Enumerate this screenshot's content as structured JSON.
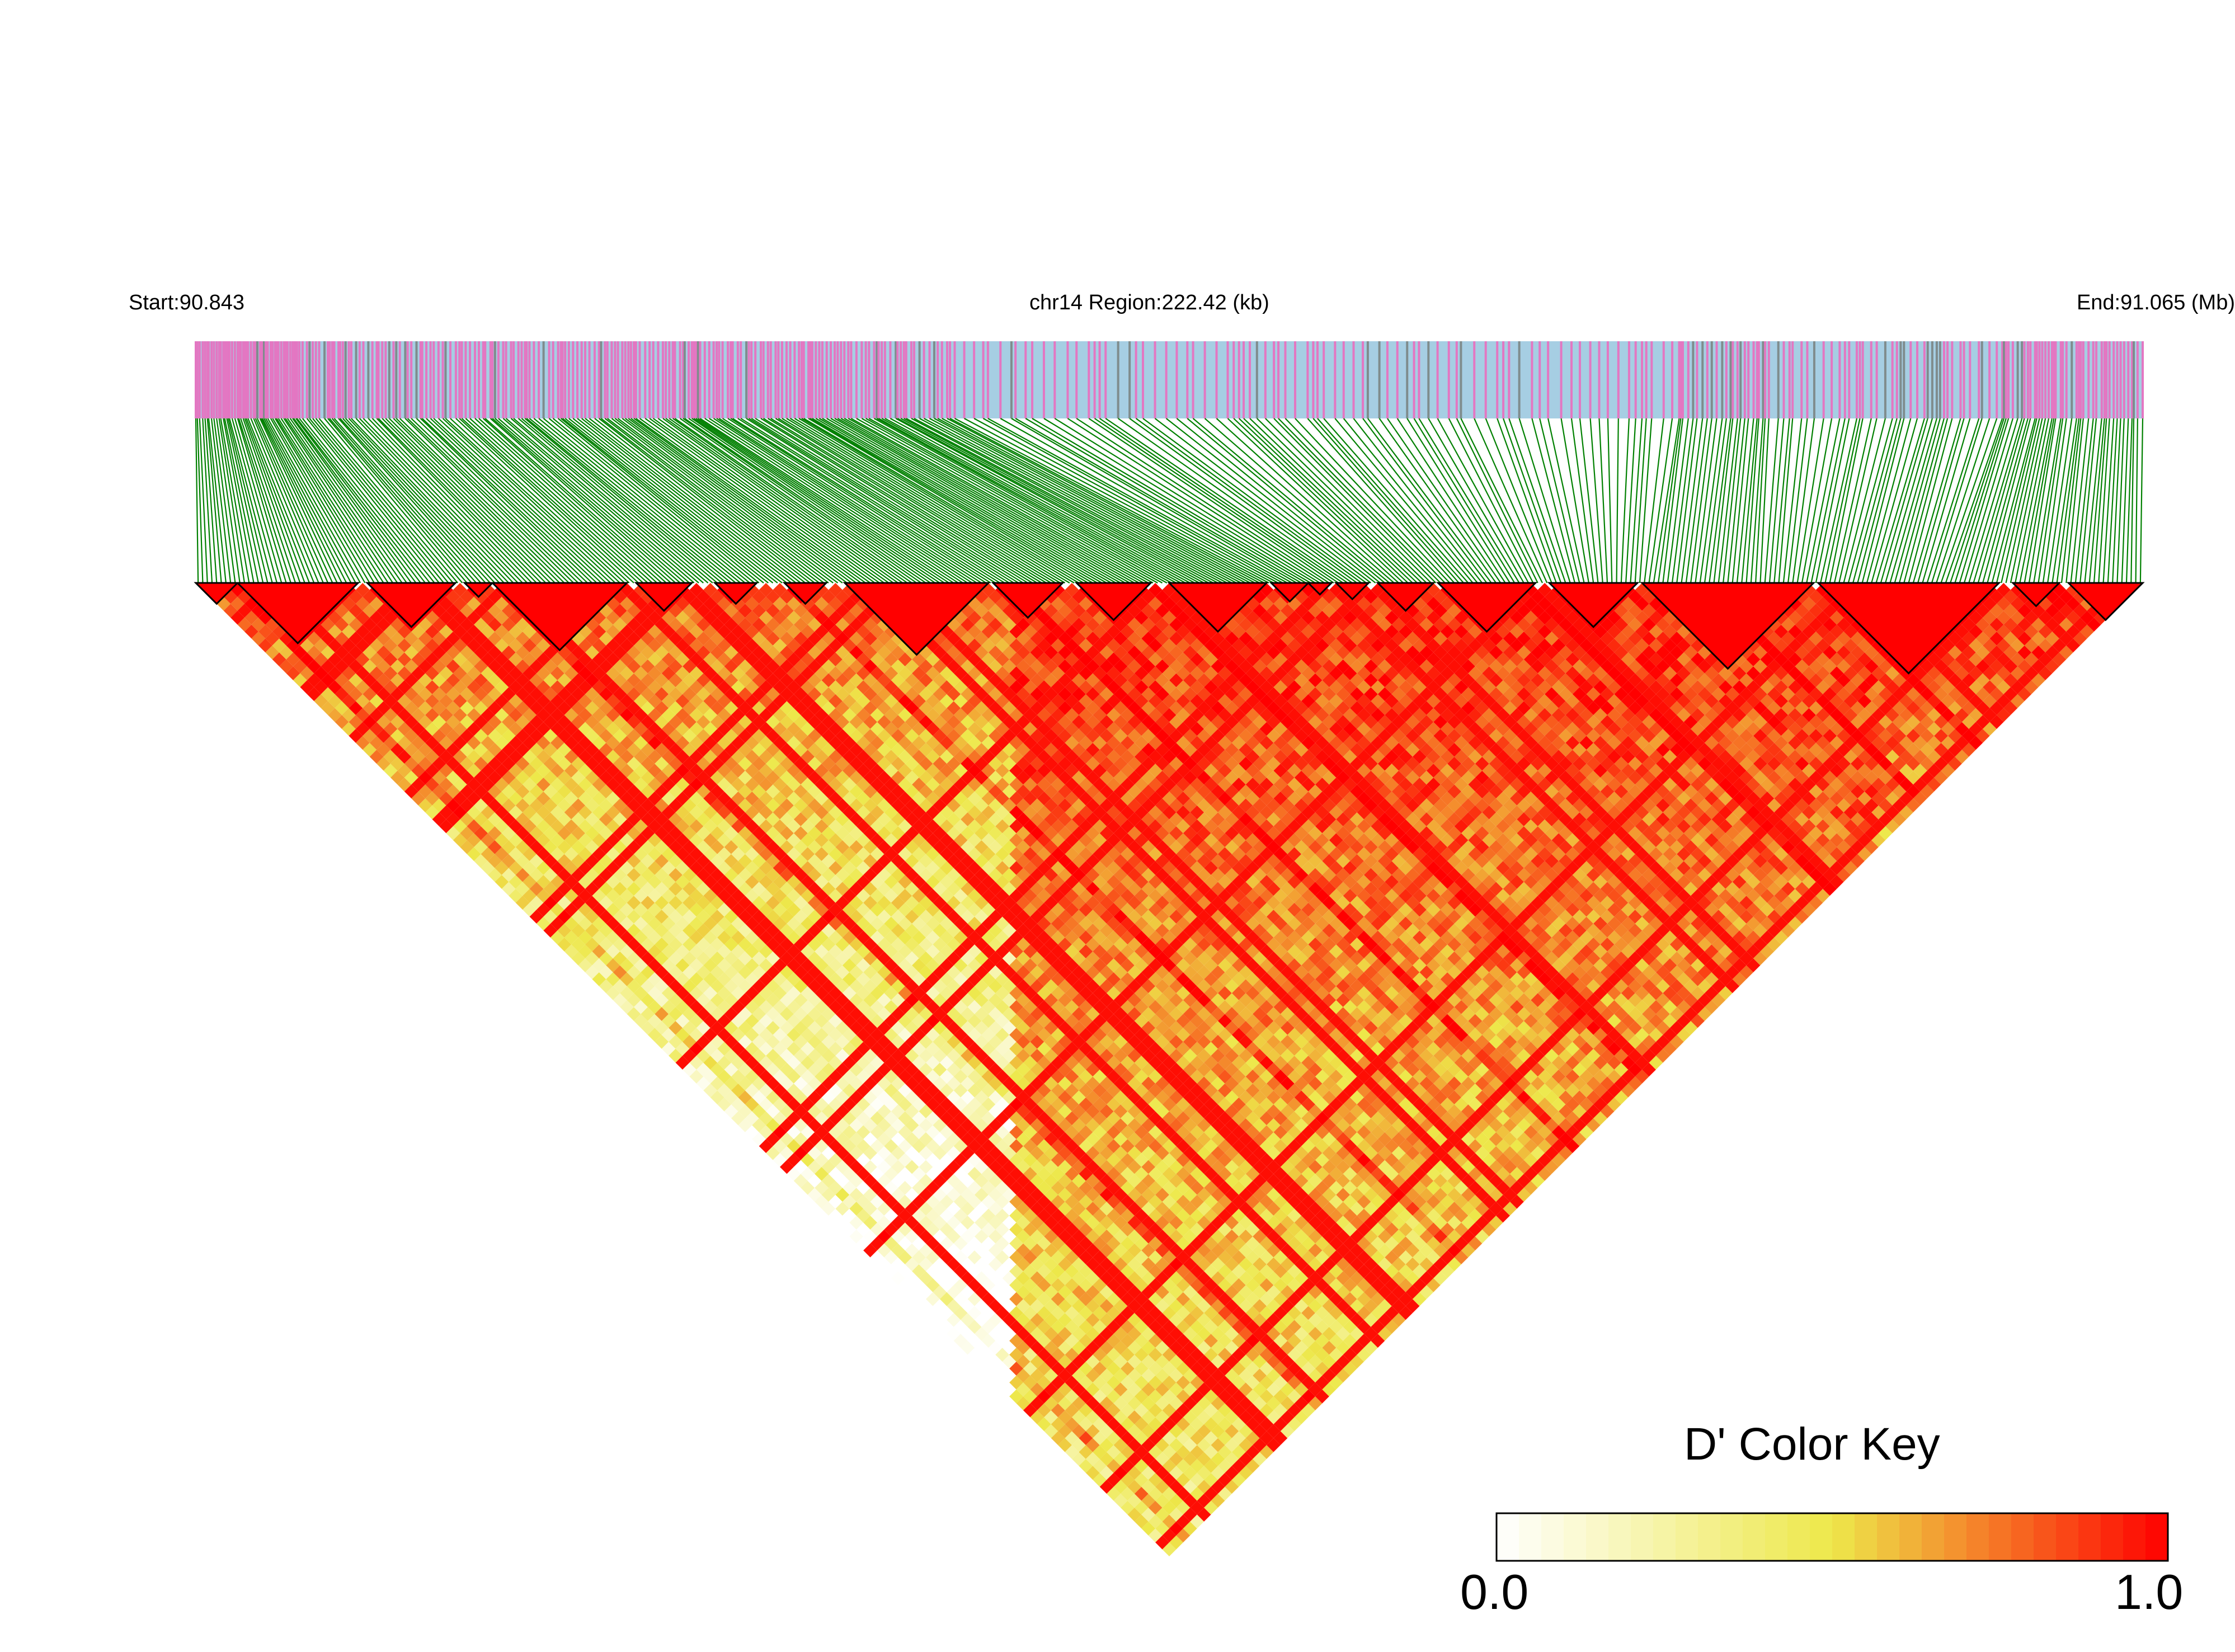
{
  "header": {
    "start_label": "Start:90.843",
    "region_label": "chr14 Region:222.42 (kb)",
    "end_label": "End:91.065 (Mb)"
  },
  "colors": {
    "snp_track_background": "#a6cee3",
    "snp_track_marker": "#e377c2",
    "connector_lines": "#008000",
    "block_fill": "#ff0000",
    "block_outline": "#000000",
    "scale_low": "#ffffff",
    "scale_mid": "#ede84a",
    "scale_high": "#ff0000"
  },
  "chart_data": {
    "type": "heatmap",
    "description_kind": "LD triangle (pairwise D')",
    "chromosome": "chr14",
    "region_start_mb": 90.843,
    "region_end_mb": 91.065,
    "region_length_kb": 222.42,
    "metric": "D'",
    "value_range": [
      0.0,
      1.0
    ],
    "approx_snp_count": 420,
    "ld_blocks_snp_index_ranges": [
      [
        0,
        8
      ],
      [
        9,
        34
      ],
      [
        37,
        55
      ],
      [
        58,
        63
      ],
      [
        64,
        92
      ],
      [
        95,
        106
      ],
      [
        112,
        120
      ],
      [
        127,
        135
      ],
      [
        140,
        170
      ],
      [
        172,
        186
      ],
      [
        190,
        205
      ],
      [
        210,
        230
      ],
      [
        232,
        239
      ],
      [
        240,
        244
      ],
      [
        246,
        252
      ],
      [
        255,
        266
      ],
      [
        268,
        288
      ],
      [
        292,
        310
      ],
      [
        312,
        348
      ],
      [
        350,
        388
      ],
      [
        392,
        401
      ],
      [
        404,
        419
      ]
    ],
    "color_key": {
      "title": "D' Color Key",
      "min_label": "0.0",
      "max_label": "1.0",
      "stops": [
        "#ffffff",
        "#ede84a",
        "#ff0000"
      ]
    }
  }
}
